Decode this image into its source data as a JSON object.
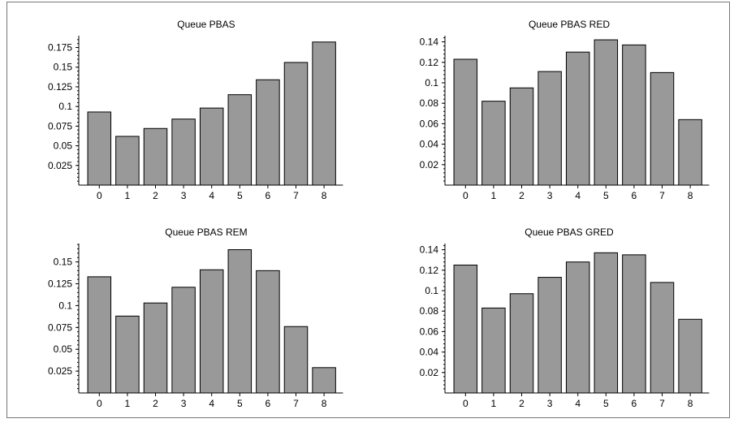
{
  "colors": {
    "bar_fill": "#999999",
    "bar_stroke": "#000000",
    "frame": "#777777"
  },
  "chart_data": [
    {
      "type": "bar",
      "title": "Queue PBAS",
      "categories": [
        "0",
        "1",
        "2",
        "3",
        "4",
        "5",
        "6",
        "7",
        "8"
      ],
      "values": [
        0.093,
        0.062,
        0.072,
        0.084,
        0.098,
        0.115,
        0.134,
        0.156,
        0.182
      ],
      "ylim": [
        0,
        0.19
      ],
      "yticks": [
        0.025,
        0.05,
        0.075,
        0.1,
        0.125,
        0.15,
        0.175
      ],
      "ytick_labels": [
        "0.025",
        "0.05",
        "0.075",
        "0.1",
        "0.125",
        "0.15",
        "0.175"
      ],
      "grid": false
    },
    {
      "type": "bar",
      "title": "Queue PBAS RED",
      "categories": [
        "0",
        "1",
        "2",
        "3",
        "4",
        "5",
        "6",
        "7",
        "8"
      ],
      "values": [
        0.123,
        0.082,
        0.095,
        0.111,
        0.13,
        0.142,
        0.137,
        0.11,
        0.064
      ],
      "ylim": [
        0,
        0.146
      ],
      "yticks": [
        0.02,
        0.04,
        0.06,
        0.08,
        0.1,
        0.12,
        0.14
      ],
      "ytick_labels": [
        "0.02",
        "0.04",
        "0.06",
        "0.08",
        "0.1",
        "0.12",
        "0.14"
      ],
      "grid": false
    },
    {
      "type": "bar",
      "title": "Queue PBAS REM",
      "categories": [
        "0",
        "1",
        "2",
        "3",
        "4",
        "5",
        "6",
        "7",
        "8"
      ],
      "values": [
        0.133,
        0.088,
        0.103,
        0.121,
        0.141,
        0.164,
        0.14,
        0.076,
        0.029
      ],
      "ylim": [
        0,
        0.171
      ],
      "yticks": [
        0.025,
        0.05,
        0.075,
        0.1,
        0.125,
        0.15
      ],
      "ytick_labels": [
        "0.025",
        "0.05",
        "0.075",
        "0.1",
        "0.125",
        "0.15"
      ],
      "grid": false
    },
    {
      "type": "bar",
      "title": "Queue PBAS GRED",
      "categories": [
        "0",
        "1",
        "2",
        "3",
        "4",
        "5",
        "6",
        "7",
        "8"
      ],
      "values": [
        0.125,
        0.083,
        0.097,
        0.113,
        0.128,
        0.137,
        0.135,
        0.108,
        0.072
      ],
      "ylim": [
        0,
        0.146
      ],
      "yticks": [
        0.02,
        0.04,
        0.06,
        0.08,
        0.1,
        0.12,
        0.14
      ],
      "ytick_labels": [
        "0.02",
        "0.04",
        "0.06",
        "0.08",
        "0.1",
        "0.12",
        "0.14"
      ],
      "grid": false
    }
  ]
}
